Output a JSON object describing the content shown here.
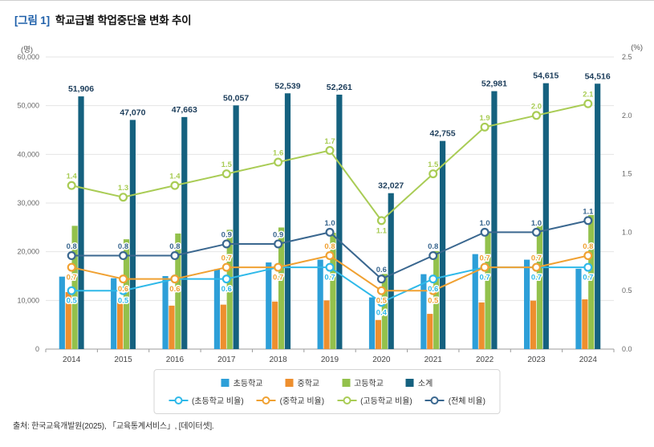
{
  "figure": {
    "tag": "[그림 1]",
    "title": "학교급별 학업중단율 변화 추이"
  },
  "source": "출처: 한국교육개발원(2025), 「교육통계서비스」, [데이터셋].",
  "colors": {
    "figure_tag": "#1E5FA9",
    "title_text": "#111111",
    "total_label": "#1B3C5A",
    "grid_line": "#E5E5E5",
    "axis_line": "#9B9B9B",
    "tick_text": "#666666",
    "year_text": "#444444"
  },
  "chart_data": {
    "type": "bar+line",
    "title": "학교급별 학업중단율 변화 추이",
    "categories": [
      "2014",
      "2015",
      "2016",
      "2017",
      "2018",
      "2019",
      "2020",
      "2021",
      "2022",
      "2023",
      "2024"
    ],
    "left_axis": {
      "unit": "(명)",
      "min": 0,
      "max": 60000,
      "tick_step": 10000
    },
    "right_axis": {
      "unit": "(%)",
      "min": 0,
      "max": 2.5,
      "tick_step": 0.5
    },
    "grid": "horizontal",
    "legend_position": "bottom",
    "bar_series": [
      {
        "name": "초등학교",
        "color": "#2D9FD8",
        "values": [
          14886,
          14555,
          14998,
          16422,
          17797,
          18366,
          10619,
          15389,
          19509,
          18363,
          16500
        ]
      },
      {
        "name": "중학교",
        "color": "#EE8F2E",
        "values": [
          11702,
          9961,
          8924,
          9129,
          9764,
          10001,
          5976,
          7235,
          9585,
          9947,
          10216
        ]
      },
      {
        "name": "고등학교",
        "color": "#93C14C",
        "values": [
          25318,
          22554,
          23741,
          24506,
          24978,
          23894,
          15432,
          20131,
          23887,
          26305,
          27800
        ]
      },
      {
        "name": "소계",
        "color": "#15617F",
        "value_labels": true,
        "values": [
          51906,
          47070,
          47663,
          50057,
          52539,
          52261,
          32027,
          42755,
          52981,
          54615,
          54516
        ]
      }
    ],
    "line_series": [
      {
        "name": "(초등학교 비율)",
        "color": "#2FB9E9",
        "values": [
          0.5,
          0.5,
          0.6,
          0.6,
          0.7,
          0.7,
          0.4,
          0.6,
          0.7,
          0.7,
          0.7
        ],
        "label_side": "below"
      },
      {
        "name": "(중학교 비율)",
        "color": "#F0A132",
        "values": [
          0.7,
          0.6,
          0.6,
          0.7,
          0.7,
          0.8,
          0.5,
          0.5,
          0.7,
          0.7,
          0.8
        ],
        "label_side": [
          "below",
          "below",
          "below",
          "above",
          "below",
          "above",
          "below",
          "below",
          "above",
          "above",
          "above"
        ]
      },
      {
        "name": "(고등학교 비율)",
        "color": "#A9CC55",
        "values": [
          1.4,
          1.3,
          1.4,
          1.5,
          1.6,
          1.7,
          1.1,
          1.5,
          1.9,
          2.0,
          2.1
        ],
        "label_side": [
          "above",
          "above",
          "above",
          "above",
          "above",
          "above",
          "below",
          "above",
          "above",
          "above",
          "above"
        ]
      },
      {
        "name": "(전체 비율)",
        "color": "#3A678F",
        "values": [
          0.8,
          0.8,
          0.8,
          0.9,
          0.9,
          1.0,
          0.6,
          0.8,
          1.0,
          1.0,
          1.1
        ],
        "label_side": "above"
      }
    ]
  }
}
